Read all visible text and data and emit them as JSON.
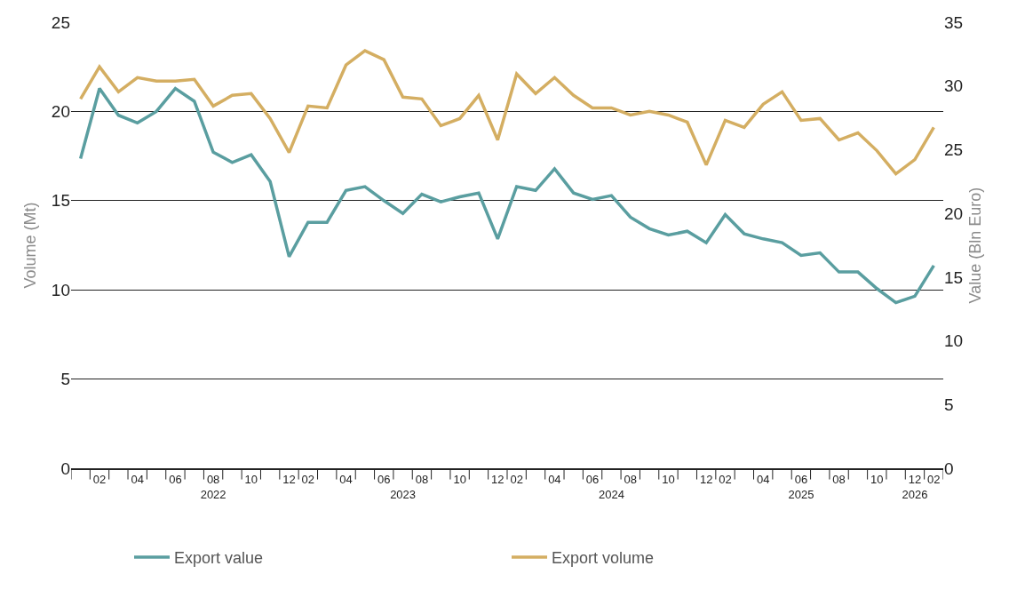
{
  "chart_data": {
    "type": "line",
    "ylabel": "Volume (Mt)",
    "y2label": "Value (Bln Euro)",
    "categories": [
      null,
      "02",
      null,
      "04",
      null,
      "06",
      null,
      "08\n2022",
      null,
      "10",
      null,
      "12",
      "02",
      null,
      "04",
      null,
      "06",
      "\n2023",
      "08",
      null,
      "10",
      null,
      "12",
      "02",
      null,
      "04",
      null,
      "06",
      "\n2024",
      "08",
      null,
      "10",
      null,
      "12",
      "02",
      null,
      "04",
      null,
      "06\n2025",
      null,
      "08",
      null,
      "10",
      null,
      "12\n2026",
      "02"
    ],
    "series": [
      {
        "name": "Export value",
        "color": "#5a9ea0",
        "axis": "y2",
        "values": [
          24.3,
          29.8,
          27.7,
          27.1,
          28.0,
          29.8,
          28.8,
          24.8,
          24.0,
          24.6,
          22.5,
          16.6,
          19.3,
          19.3,
          21.8,
          22.1,
          21.0,
          20.0,
          21.5,
          20.9,
          21.3,
          21.6,
          18.0,
          22.1,
          21.8,
          23.5,
          21.6,
          21.1,
          21.4,
          19.7,
          18.8,
          18.3,
          18.6,
          17.7,
          19.9,
          18.4,
          18.0,
          17.7,
          16.7,
          16.9,
          15.4,
          15.4,
          14.1,
          13.0,
          13.5,
          15.9
        ]
      },
      {
        "name": "Export volume",
        "color": "#d4ae62",
        "axis": "y",
        "values": [
          20.7,
          22.5,
          21.1,
          21.9,
          21.7,
          21.7,
          21.8,
          20.3,
          20.9,
          21.0,
          19.6,
          17.7,
          20.3,
          20.2,
          22.6,
          23.4,
          22.9,
          20.8,
          20.7,
          19.2,
          19.6,
          20.9,
          18.4,
          22.1,
          21.0,
          21.9,
          20.9,
          20.2,
          20.2,
          19.8,
          20.0,
          19.8,
          19.4,
          17.0,
          19.5,
          19.1,
          20.4,
          21.1,
          19.5,
          19.6,
          18.4,
          18.8,
          17.8,
          16.5,
          17.3,
          19.1
        ]
      }
    ],
    "ylim": [
      0,
      25
    ],
    "yticks": [
      0,
      5,
      10,
      15,
      20,
      25
    ],
    "y2lim": [
      0,
      35
    ],
    "y2ticks": [
      0,
      5,
      10,
      15,
      20,
      25,
      30,
      35
    ],
    "grid": "y",
    "legend": "bottom",
    "marker": "none",
    "line_style": "solid"
  }
}
